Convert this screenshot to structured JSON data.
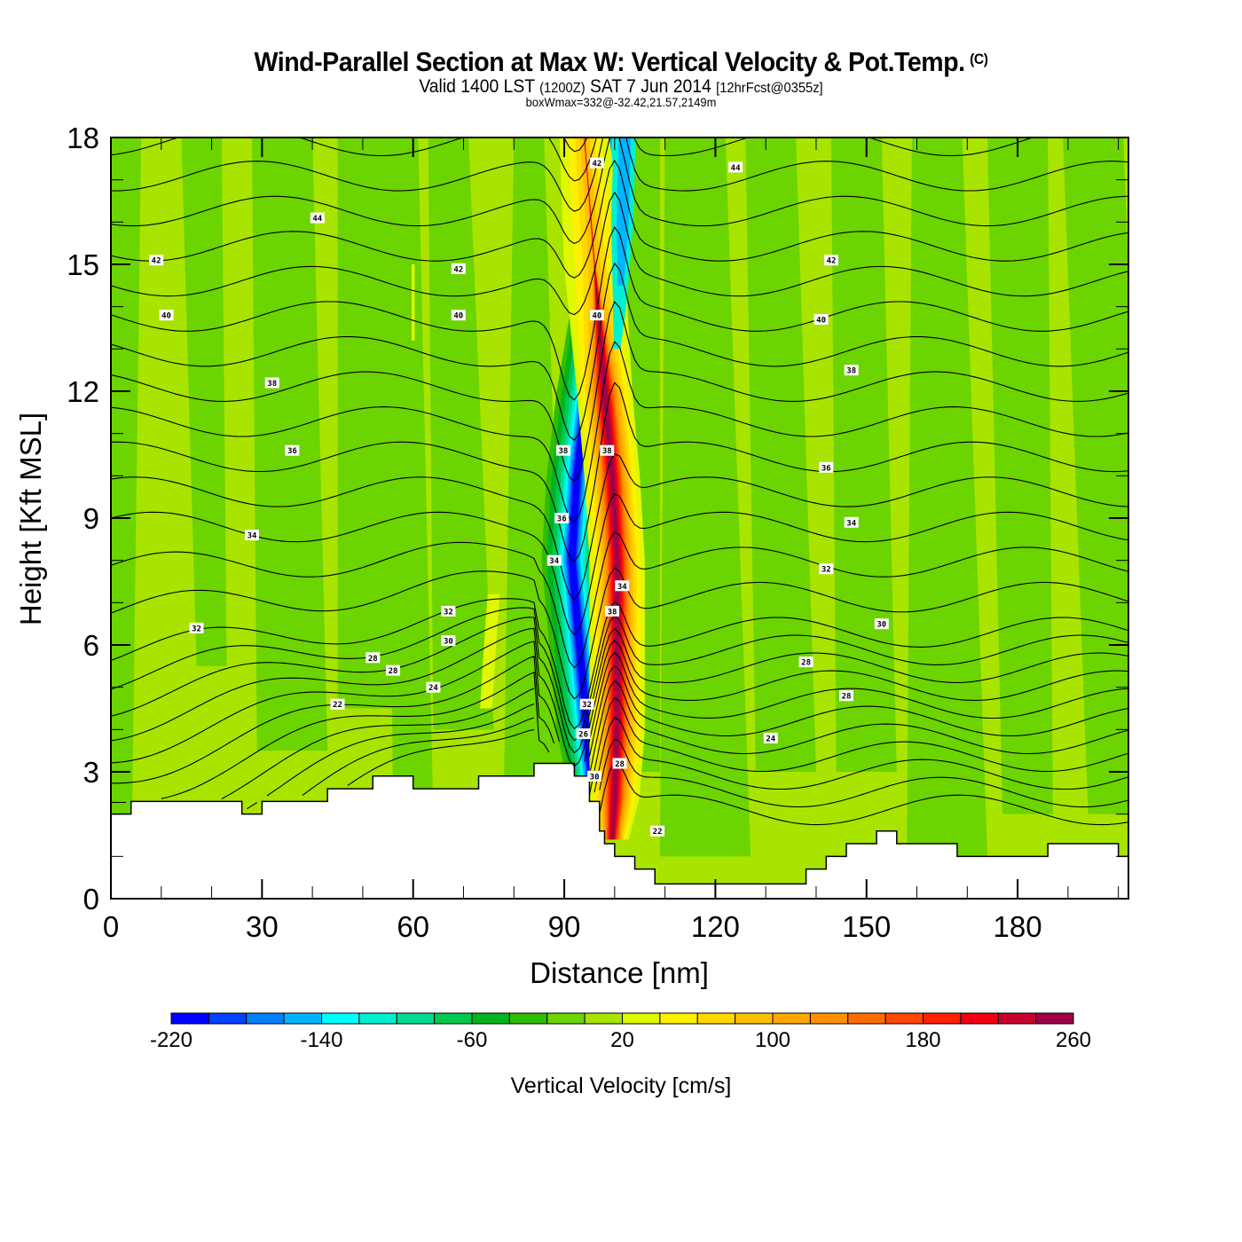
{
  "header": {
    "title": "Wind-Parallel Section at Max W: Vertical Velocity & Pot.Temp.",
    "copyright_mark": "(C)",
    "subtitle_part1": "Valid 1400 LST",
    "subtitle_part2": "(1200Z)",
    "subtitle_part3": "SAT 7 Jun 2014",
    "subtitle_part4": "[12hrFcst@0355z]",
    "box_line": "boxWmax=332@-32.42,21.57,2149m"
  },
  "chart_data": {
    "type": "heatmap",
    "title": "Wind-Parallel Section at Max W: Vertical Velocity & Pot.Temp.",
    "xlabel": "Distance [nm]",
    "ylabel": "Height [Kft MSL]",
    "xlim": [
      0,
      202
    ],
    "ylim": [
      0,
      18
    ],
    "x_ticks": [
      0,
      30,
      60,
      90,
      120,
      150,
      180
    ],
    "x_tick_labels": [
      "0",
      "30",
      "60",
      "90",
      "120",
      "150",
      "180"
    ],
    "y_ticks": [
      0,
      3,
      6,
      9,
      12,
      15,
      18
    ],
    "y_tick_labels": [
      "0",
      "3",
      "6",
      "9",
      "12",
      "15",
      "18"
    ],
    "x_minor_step": 10,
    "y_minor_step": 1,
    "colorbar": {
      "title": "Vertical Velocity [cm/s]",
      "min": -220,
      "max": 260,
      "step": 20,
      "tick_values": [
        -220,
        -140,
        -60,
        20,
        100,
        180,
        260
      ],
      "tick_labels": [
        "-220",
        "-140",
        "-60",
        "20",
        "100",
        "180",
        "260"
      ],
      "colors": [
        "#0000ff",
        "#0040ff",
        "#0080ff",
        "#00b4ff",
        "#00ffff",
        "#00f0d0",
        "#00dc90",
        "#00c850",
        "#00b420",
        "#30bc00",
        "#6cd400",
        "#a8e400",
        "#e0f800",
        "#fff000",
        "#ffd800",
        "#ffc000",
        "#ffa800",
        "#ff9000",
        "#ff6c00",
        "#ff4800",
        "#ff2000",
        "#f00010",
        "#c80030",
        "#a00048"
      ]
    },
    "terrain_profile_kft": {
      "x": [
        0,
        4,
        4,
        26,
        26,
        30,
        30,
        43,
        43,
        52,
        52,
        60,
        60,
        73,
        73,
        84,
        84,
        92,
        92,
        95,
        95,
        97,
        97,
        98,
        98,
        100,
        100,
        104,
        104,
        108,
        108,
        112,
        112,
        138,
        138,
        142,
        142,
        146,
        146,
        152,
        152,
        156,
        156,
        168,
        168,
        186,
        186,
        200,
        200,
        202
      ],
      "y": [
        2.0,
        2.0,
        2.3,
        2.3,
        2.0,
        2.0,
        2.3,
        2.3,
        2.6,
        2.6,
        2.9,
        2.9,
        2.6,
        2.6,
        2.9,
        2.9,
        3.2,
        3.2,
        2.9,
        2.9,
        2.3,
        2.3,
        1.6,
        1.6,
        1.3,
        1.3,
        1.0,
        1.0,
        0.7,
        0.7,
        0.35,
        0.35,
        0.35,
        0.35,
        0.7,
        0.7,
        1.0,
        1.0,
        1.3,
        1.3,
        1.6,
        1.6,
        1.3,
        1.3,
        1.0,
        1.0,
        1.3,
        1.3,
        1.0,
        1.0
      ]
    },
    "updraft_max_cm_s": 332,
    "contour_variable": "Potential Temperature",
    "contour_labels": [
      {
        "text": "44",
        "x": 41,
        "y": 16.1
      },
      {
        "text": "44",
        "x": 124,
        "y": 17.3
      },
      {
        "text": "42",
        "x": 9,
        "y": 15.1
      },
      {
        "text": "42",
        "x": 69,
        "y": 14.9
      },
      {
        "text": "42",
        "x": 143,
        "y": 15.1
      },
      {
        "text": "42",
        "x": 96.5,
        "y": 17.4
      },
      {
        "text": "40",
        "x": 11,
        "y": 13.8
      },
      {
        "text": "40",
        "x": 69,
        "y": 13.8
      },
      {
        "text": "40",
        "x": 96.5,
        "y": 13.8
      },
      {
        "text": "40",
        "x": 141,
        "y": 13.7
      },
      {
        "text": "38",
        "x": 32,
        "y": 12.2
      },
      {
        "text": "38",
        "x": 147,
        "y": 12.5
      },
      {
        "text": "38",
        "x": 89.8,
        "y": 10.6
      },
      {
        "text": "38",
        "x": 98.5,
        "y": 10.6
      },
      {
        "text": "36",
        "x": 36,
        "y": 10.6
      },
      {
        "text": "36",
        "x": 142,
        "y": 10.2
      },
      {
        "text": "36",
        "x": 89.5,
        "y": 9.0
      },
      {
        "text": "34",
        "x": 28,
        "y": 8.6
      },
      {
        "text": "34",
        "x": 147,
        "y": 8.9
      },
      {
        "text": "34",
        "x": 88,
        "y": 8.0
      },
      {
        "text": "34",
        "x": 101.5,
        "y": 7.4
      },
      {
        "text": "32",
        "x": 17,
        "y": 6.4
      },
      {
        "text": "32",
        "x": 67,
        "y": 6.8
      },
      {
        "text": "32",
        "x": 142,
        "y": 7.8
      },
      {
        "text": "32",
        "x": 94.5,
        "y": 4.6
      },
      {
        "text": "38",
        "x": 99.5,
        "y": 6.8
      },
      {
        "text": "30",
        "x": 67,
        "y": 6.1
      },
      {
        "text": "30",
        "x": 153,
        "y": 6.5
      },
      {
        "text": "30",
        "x": 96,
        "y": 2.9
      },
      {
        "text": "28",
        "x": 52,
        "y": 5.7
      },
      {
        "text": "28",
        "x": 56,
        "y": 5.4
      },
      {
        "text": "28",
        "x": 138,
        "y": 5.6
      },
      {
        "text": "28",
        "x": 146,
        "y": 4.8
      },
      {
        "text": "26",
        "x": 93.8,
        "y": 3.9
      },
      {
        "text": "28",
        "x": 101,
        "y": 3.2
      },
      {
        "text": "24",
        "x": 64,
        "y": 5.0
      },
      {
        "text": "24",
        "x": 131,
        "y": 3.8
      },
      {
        "text": "22",
        "x": 45,
        "y": 4.6
      },
      {
        "text": "22",
        "x": 108.5,
        "y": 1.6
      }
    ]
  }
}
